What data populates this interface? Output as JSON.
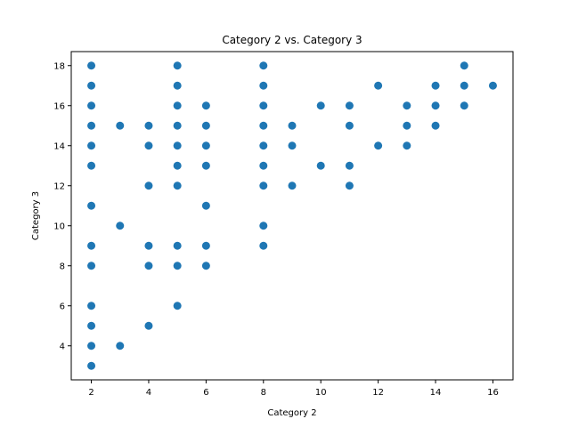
{
  "chart_data": {
    "type": "scatter",
    "title": "Category 2 vs. Category 3",
    "xlabel": "Category 2",
    "ylabel": "Category 3",
    "xlim": [
      1.3,
      16.7
    ],
    "ylim": [
      2.3,
      18.7
    ],
    "xticks": [
      2,
      4,
      6,
      8,
      10,
      12,
      14,
      16
    ],
    "yticks": [
      4,
      6,
      8,
      10,
      12,
      14,
      16,
      18
    ],
    "grid": false,
    "marker_color": "#1f77b4",
    "points": [
      [
        2,
        18
      ],
      [
        2,
        17
      ],
      [
        2,
        16
      ],
      [
        2,
        15
      ],
      [
        2,
        14
      ],
      [
        2,
        13
      ],
      [
        2,
        11
      ],
      [
        2,
        9
      ],
      [
        2,
        8
      ],
      [
        2,
        6
      ],
      [
        2,
        5
      ],
      [
        2,
        4
      ],
      [
        2,
        3
      ],
      [
        3,
        15
      ],
      [
        3,
        10
      ],
      [
        3,
        4
      ],
      [
        4,
        15
      ],
      [
        4,
        14
      ],
      [
        4,
        12
      ],
      [
        4,
        9
      ],
      [
        4,
        8
      ],
      [
        4,
        5
      ],
      [
        5,
        18
      ],
      [
        5,
        17
      ],
      [
        5,
        16
      ],
      [
        5,
        15
      ],
      [
        5,
        14
      ],
      [
        5,
        13
      ],
      [
        5,
        12
      ],
      [
        5,
        9
      ],
      [
        5,
        8
      ],
      [
        5,
        6
      ],
      [
        6,
        16
      ],
      [
        6,
        15
      ],
      [
        6,
        14
      ],
      [
        6,
        13
      ],
      [
        6,
        11
      ],
      [
        6,
        9
      ],
      [
        6,
        8
      ],
      [
        8,
        18
      ],
      [
        8,
        17
      ],
      [
        8,
        16
      ],
      [
        8,
        15
      ],
      [
        8,
        14
      ],
      [
        8,
        13
      ],
      [
        8,
        12
      ],
      [
        8,
        10
      ],
      [
        8,
        9
      ],
      [
        9,
        15
      ],
      [
        9,
        14
      ],
      [
        9,
        12
      ],
      [
        10,
        16
      ],
      [
        10,
        13
      ],
      [
        11,
        16
      ],
      [
        11,
        15
      ],
      [
        11,
        13
      ],
      [
        11,
        12
      ],
      [
        12,
        17
      ],
      [
        12,
        14
      ],
      [
        13,
        16
      ],
      [
        13,
        15
      ],
      [
        13,
        14
      ],
      [
        14,
        17
      ],
      [
        14,
        16
      ],
      [
        14,
        15
      ],
      [
        15,
        18
      ],
      [
        15,
        17
      ],
      [
        15,
        16
      ],
      [
        16,
        17
      ]
    ]
  }
}
